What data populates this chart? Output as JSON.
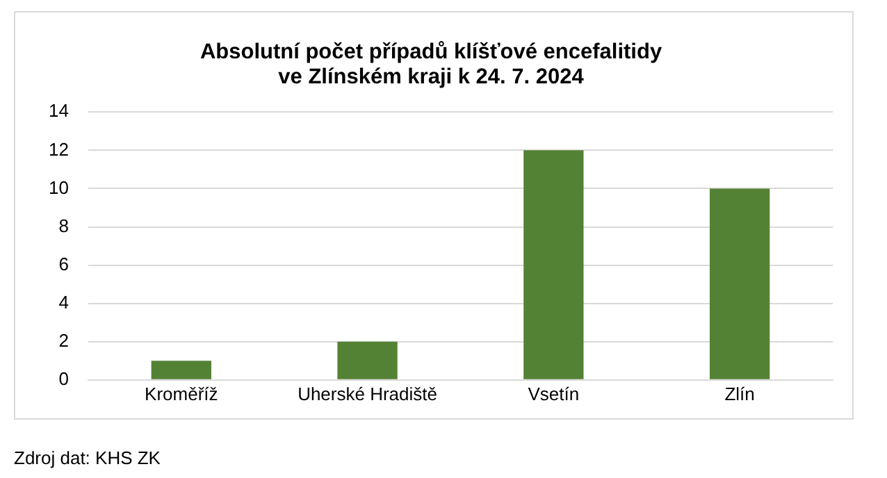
{
  "chart_data": {
    "type": "bar",
    "title": "Absolutní počet případů klíšťové encefalitidy\nve Zlínském kraji k 24. 7. 2024",
    "categories": [
      "Kroměříž",
      "Uherské Hradiště",
      "Vsetín",
      "Zlín"
    ],
    "values": [
      1,
      2,
      12,
      10
    ],
    "color": "#548235",
    "ylim": [
      0,
      14
    ],
    "yticks": [
      0,
      2,
      4,
      6,
      8,
      10,
      12,
      14
    ],
    "grid": "y",
    "annotations": [
      "Zdroj dat: KHS ZK"
    ]
  }
}
